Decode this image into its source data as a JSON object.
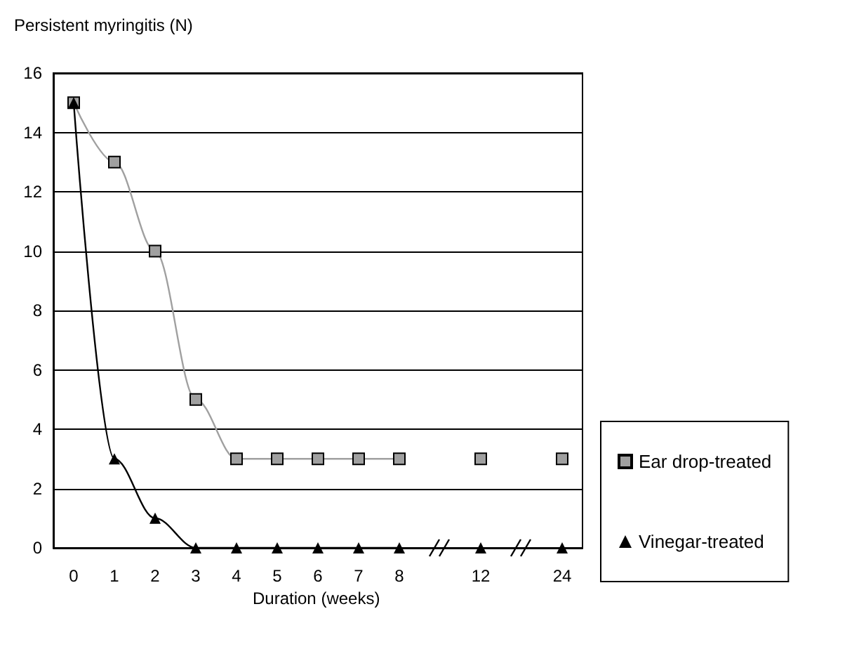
{
  "chart_data": {
    "type": "line",
    "ylabel": "Persistent myringitis (N)",
    "xlabel": "Duration (weeks)",
    "categories": [
      "0",
      "1",
      "2",
      "3",
      "4",
      "5",
      "6",
      "7",
      "8",
      null,
      "12",
      null,
      "24"
    ],
    "series": [
      {
        "name": "Ear drop-treated",
        "color": "#a0a0a0",
        "marker": "square",
        "values": [
          15,
          13,
          10,
          5,
          3,
          3,
          3,
          3,
          3,
          null,
          3,
          null,
          3
        ]
      },
      {
        "name": "Vinegar-treated",
        "color": "#000000",
        "marker": "triangle",
        "values": [
          15,
          3,
          1,
          0,
          0,
          0,
          0,
          0,
          0,
          null,
          0,
          null,
          0
        ]
      }
    ],
    "ylim": [
      0,
      16
    ],
    "yticks": [
      0,
      2,
      4,
      6,
      8,
      10,
      12,
      14,
      16
    ],
    "grid": "y",
    "legend": "right"
  }
}
